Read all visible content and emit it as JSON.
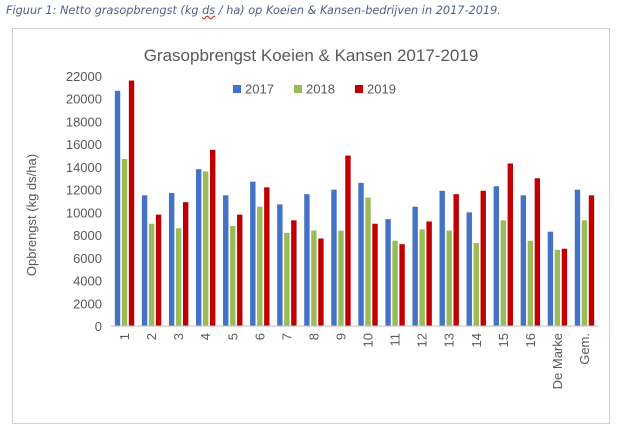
{
  "caption": {
    "prefix": "Figuur 1: Netto grasopbrengst (kg ",
    "ds": "ds",
    "suffix": " / ha) op Koeien & Kansen-bedrijven in 2017-2019."
  },
  "chart_data": {
    "type": "bar",
    "title": "Grasopbrengst Koeien & Kansen 2017-2019",
    "xlabel": "",
    "ylabel": "Opbrengst (kg ds/ha)",
    "ylim": [
      0,
      22000
    ],
    "yticks": [
      0,
      2000,
      4000,
      6000,
      8000,
      10000,
      12000,
      14000,
      16000,
      18000,
      20000,
      22000
    ],
    "grid": false,
    "legend": "top-center",
    "categories": [
      "1",
      "2",
      "3",
      "4",
      "5",
      "6",
      "7",
      "8",
      "9",
      "10",
      "11",
      "12",
      "13",
      "14",
      "15",
      "16",
      "De Marke",
      "Gem."
    ],
    "series": [
      {
        "name": "2017",
        "color": "#4472c4",
        "values": [
          20700,
          11500,
          11700,
          13800,
          11500,
          12700,
          10700,
          11600,
          12000,
          12600,
          9400,
          10500,
          11900,
          10000,
          12300,
          11500,
          8300,
          12000
        ]
      },
      {
        "name": "2018",
        "color": "#9bbb59",
        "values": [
          14700,
          9000,
          8600,
          13600,
          8800,
          10500,
          8200,
          8400,
          8400,
          11300,
          7500,
          8500,
          8400,
          7300,
          9300,
          7500,
          6700,
          9300
        ]
      },
      {
        "name": "2019",
        "color": "#c00000",
        "values": [
          21600,
          9800,
          10900,
          15500,
          9800,
          12200,
          9300,
          7700,
          15000,
          9000,
          7200,
          9200,
          11600,
          11900,
          14300,
          13000,
          6800,
          11500
        ]
      }
    ]
  }
}
